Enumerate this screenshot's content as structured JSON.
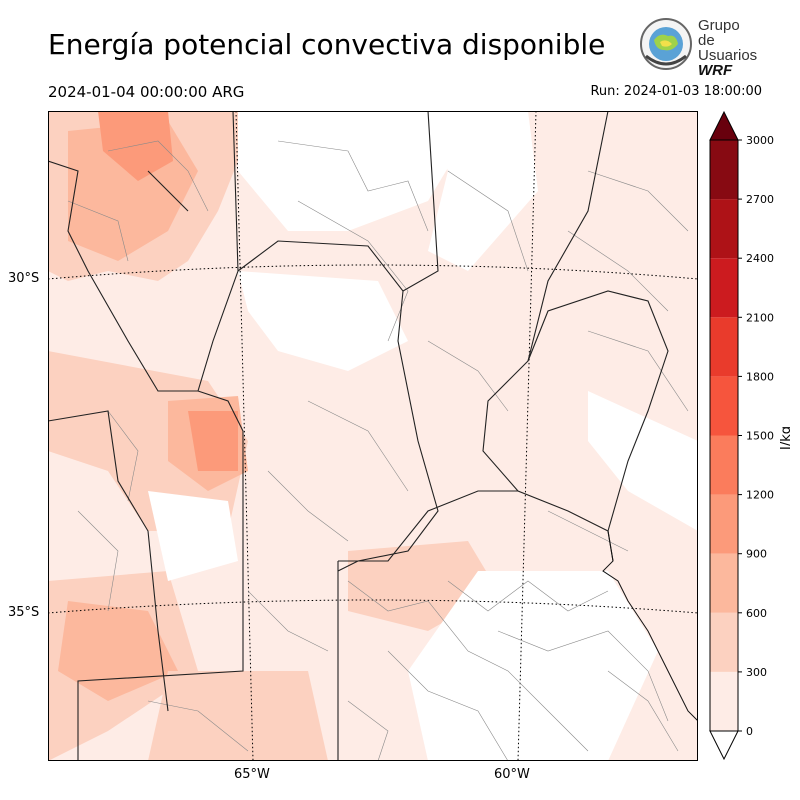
{
  "header": {
    "title": "Energía potencial convectiva disponible",
    "valid_time": "2024-01-04 00:00:00 ARG",
    "run_time": "Run: 2024-01-03 18:00:00"
  },
  "logo": {
    "line1": "Grupo de",
    "line2": "Usuarios",
    "line3": "WRF"
  },
  "map": {
    "lat_labels": [
      "30°S",
      "35°S"
    ],
    "lon_labels": [
      "65°W",
      "60°W"
    ]
  },
  "colorbar": {
    "unit": "J/kg",
    "ticks": [
      "0",
      "300",
      "600",
      "900",
      "1200",
      "1500",
      "1800",
      "2100",
      "2400",
      "2700",
      "3000"
    ],
    "colors": [
      "#feece6",
      "#fcd1c0",
      "#fcb89d",
      "#fc9a7a",
      "#fb7c5c",
      "#f6553d",
      "#e93b2c",
      "#cc1b1f",
      "#ae1217",
      "#870a12",
      "#68000d"
    ]
  }
}
